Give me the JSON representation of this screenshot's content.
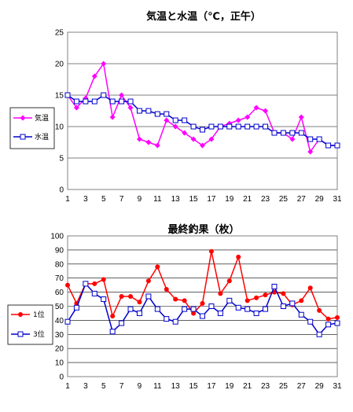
{
  "chart_data": [
    {
      "type": "line",
      "title": "気温と水温（℃，正午）",
      "x": [
        1,
        2,
        3,
        4,
        5,
        6,
        7,
        8,
        9,
        10,
        11,
        12,
        13,
        14,
        15,
        16,
        17,
        18,
        19,
        20,
        21,
        22,
        23,
        24,
        25,
        26,
        27,
        28,
        29,
        30,
        31
      ],
      "x_ticks": [
        "1",
        "3",
        "5",
        "7",
        "9",
        "11",
        "13",
        "15",
        "17",
        "19",
        "21",
        "23",
        "25",
        "27",
        "29",
        "31"
      ],
      "ylim": [
        0,
        25
      ],
      "y_ticks": [
        "0",
        "5",
        "10",
        "15",
        "20",
        "25"
      ],
      "grid": "horizontal",
      "legend_position": "left",
      "series": [
        {
          "name": "気温",
          "color": "#ff00ff",
          "marker": "diamond",
          "values": [
            15,
            13,
            14.5,
            18,
            20,
            11.5,
            15,
            13,
            8,
            7.5,
            7,
            11,
            10,
            9,
            8,
            7,
            8,
            10,
            10.5,
            11,
            11.5,
            13,
            12.5,
            9,
            9,
            8,
            11.5,
            6,
            8,
            7,
            7
          ]
        },
        {
          "name": "水温",
          "color": "#0000cc",
          "marker": "square",
          "values": [
            15,
            14,
            14,
            14,
            15,
            14,
            14,
            14,
            12.5,
            12.5,
            12,
            12,
            11,
            11,
            10,
            9.5,
            10,
            10,
            10,
            10,
            10,
            10,
            10,
            9,
            9,
            9,
            9,
            8,
            8,
            7,
            7
          ]
        }
      ]
    },
    {
      "type": "line",
      "title": "最終釣果（枚）",
      "x": [
        1,
        2,
        3,
        4,
        5,
        6,
        7,
        8,
        9,
        10,
        11,
        12,
        13,
        14,
        15,
        16,
        17,
        18,
        19,
        20,
        21,
        22,
        23,
        24,
        25,
        26,
        27,
        28,
        29,
        30,
        31
      ],
      "x_ticks": [
        "1",
        "3",
        "5",
        "7",
        "9",
        "11",
        "13",
        "15",
        "17",
        "19",
        "21",
        "23",
        "25",
        "27",
        "29",
        "31"
      ],
      "ylim": [
        0,
        100
      ],
      "y_ticks": [
        "0",
        "10",
        "20",
        "30",
        "40",
        "50",
        "60",
        "70",
        "80",
        "90",
        "100"
      ],
      "grid": "horizontal",
      "legend_position": "left",
      "series": [
        {
          "name": "1位",
          "color": "#ff0000",
          "marker": "circle",
          "values": [
            65,
            52,
            66,
            66,
            69,
            43,
            57,
            57,
            53,
            68,
            78,
            62,
            55,
            54,
            45,
            52,
            89,
            59,
            68,
            85,
            54,
            56,
            58,
            60,
            59,
            51,
            54,
            63,
            47,
            41,
            42
          ]
        },
        {
          "name": "3位",
          "color": "#0000cc",
          "marker": "square",
          "values": [
            39,
            49,
            66,
            59,
            55,
            32,
            38,
            48,
            45,
            57,
            48,
            41,
            39,
            48,
            48,
            43,
            50,
            45,
            54,
            49,
            48,
            45,
            48,
            64,
            50,
            52,
            44,
            39,
            30,
            37,
            38
          ]
        }
      ]
    }
  ]
}
